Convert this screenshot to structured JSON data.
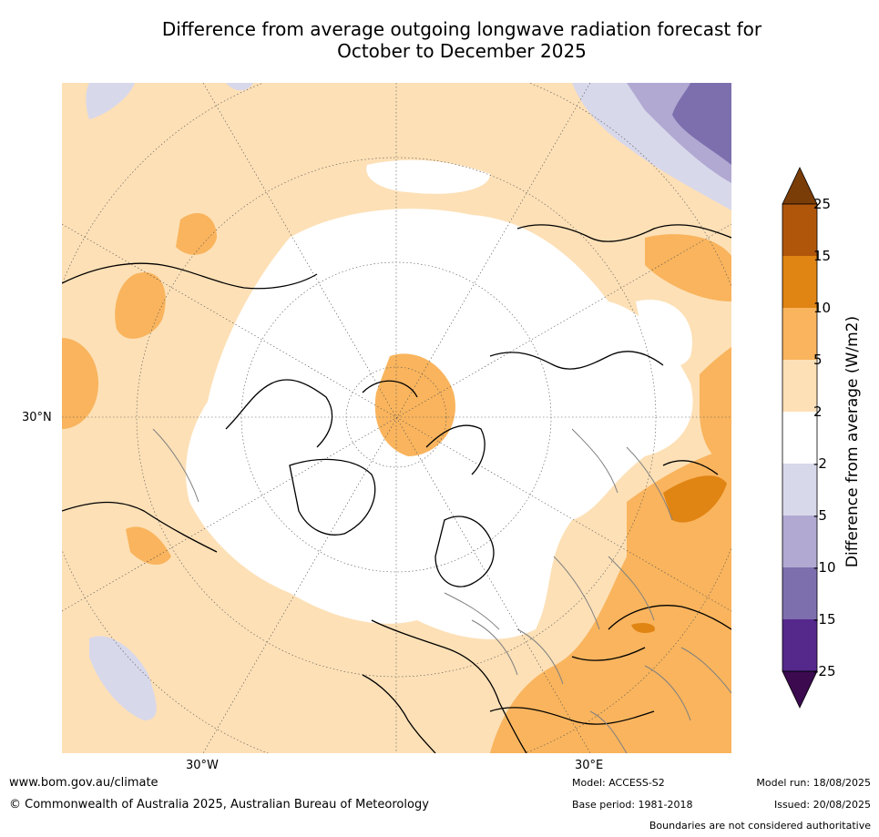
{
  "title_line1": "Difference from average outgoing longwave radiation forecast for",
  "title_line2": "October to December 2025",
  "map": {
    "projection": "north-polar",
    "lat_label": "30°N",
    "lon_labels": [
      "30°W",
      "30°E"
    ],
    "colors": {
      "land_outline": "#000000",
      "borders": "#808080",
      "grid": "#555555"
    }
  },
  "colorbar": {
    "label": "Difference from average (W/m2)",
    "ticks": [
      "25",
      "15",
      "10",
      "5",
      "2",
      "-2",
      "-5",
      "-10",
      "-15",
      "-25"
    ],
    "bins": [
      {
        "range": ">25",
        "color": "#7a3d08"
      },
      {
        "range": "15 to 25",
        "color": "#b0560b"
      },
      {
        "range": "10 to 15",
        "color": "#e08414"
      },
      {
        "range": "5 to 10",
        "color": "#f9b45d"
      },
      {
        "range": "2 to 5",
        "color": "#fde0b6"
      },
      {
        "range": "-2 to 2",
        "color": "#ffffff"
      },
      {
        "range": "-5 to -2",
        "color": "#d8d8eb"
      },
      {
        "range": "-10 to -5",
        "color": "#b1a9d2"
      },
      {
        "range": "-15 to -10",
        "color": "#7d6fae"
      },
      {
        "range": "-25 to -15",
        "color": "#55288c"
      },
      {
        "range": "<-25",
        "color": "#3b0a4f"
      }
    ]
  },
  "footer": {
    "url": "www.bom.gov.au/climate",
    "copyright": "© Commonwealth of Australia 2025, Australian Bureau of Meteorology",
    "model": "Model: ACCESS-S2",
    "base_period": "Base period: 1981-2018",
    "model_run": "Model run: 18/08/2025",
    "issued": "Issued: 20/08/2025",
    "disclaimer": "Boundaries are not considered authoritative"
  }
}
